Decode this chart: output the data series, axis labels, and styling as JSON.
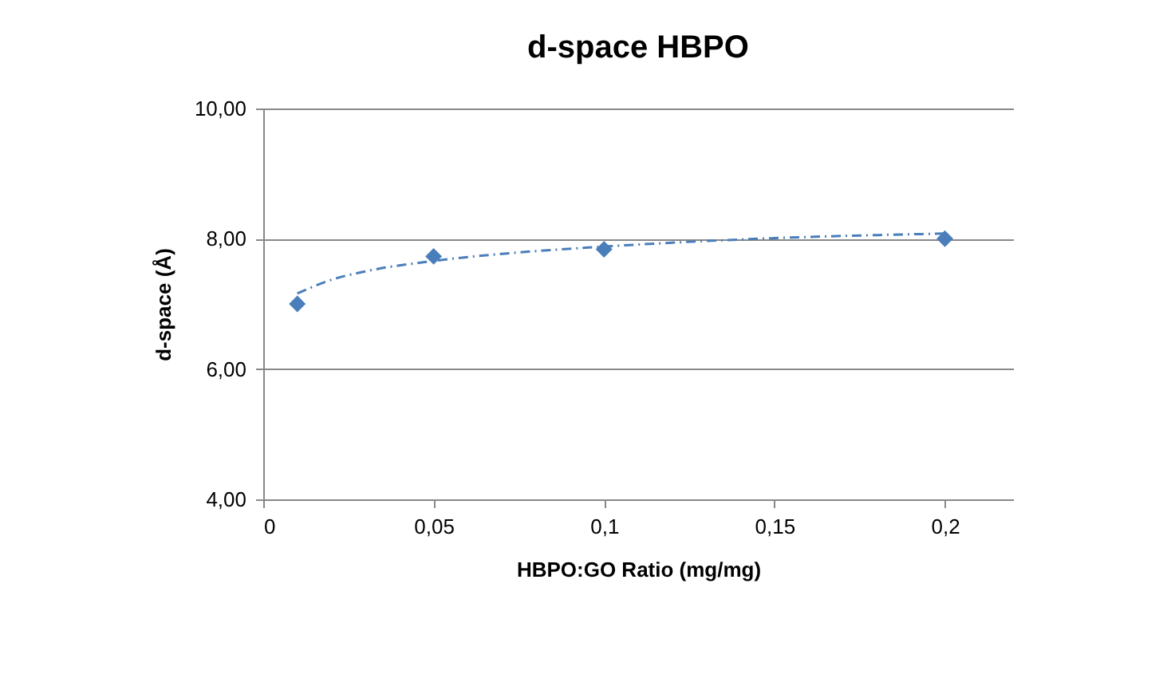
{
  "chart_data": {
    "type": "scatter",
    "title": "d-space HBPO",
    "xlabel": "HBPO:GO Ratio (mg/mg)",
    "ylabel": "d-space (Å)",
    "x": [
      0.01,
      0.05,
      0.1,
      0.2
    ],
    "series": [
      {
        "color": "#4a7ebb",
        "marker": "diamond",
        "values": [
          7.0,
          7.73,
          7.84,
          8.0
        ]
      },
      {
        "type": "line",
        "color": "#4a7ebb",
        "line_style": "dashed",
        "x": [
          0.01,
          0.02,
          0.03,
          0.05,
          0.075,
          0.1,
          0.15,
          0.2
        ],
        "values": [
          7.16,
          7.37,
          7.5,
          7.66,
          7.79,
          7.88,
          8.01,
          8.08
        ]
      }
    ],
    "xlim": [
      0,
      0.22
    ],
    "xticks": [
      0,
      {
        "value": 0.05,
        "label": "0,05"
      },
      {
        "value": 0.1,
        "label": "0,1"
      },
      {
        "value": 0.15,
        "label": "0,15"
      },
      {
        "value": 0.2,
        "label": "0,2"
      }
    ],
    "ylim": [
      4,
      10
    ],
    "yticks": [
      {
        "value": 4,
        "label": "4,00"
      },
      {
        "value": 6,
        "label": "6,00"
      },
      {
        "value": 8,
        "label": "8,00"
      },
      {
        "value": 10,
        "label": "10,00"
      }
    ],
    "grid": "y"
  }
}
